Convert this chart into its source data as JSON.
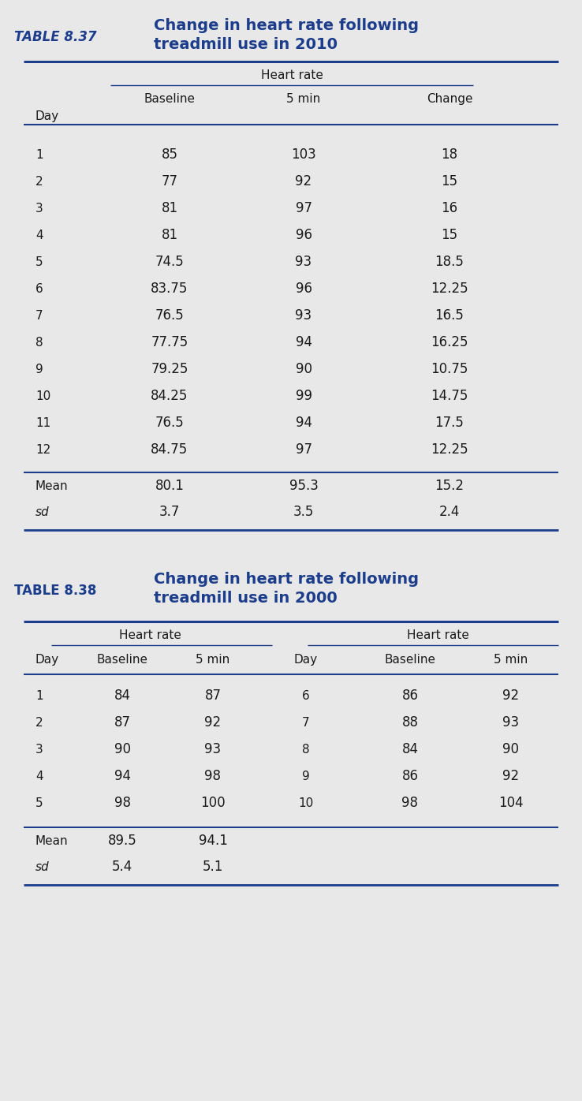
{
  "table1": {
    "title_label": "TABLE 8.37",
    "title_line1": "Change in heart rate following",
    "title_line2": "treadmill use in 2010",
    "group_header": "Heart rate",
    "col_headers": [
      "Baseline",
      "5 min",
      "Change"
    ],
    "row_label": "Day",
    "days": [
      1,
      2,
      3,
      4,
      5,
      6,
      7,
      8,
      9,
      10,
      11,
      12
    ],
    "baseline": [
      85,
      77,
      81,
      81,
      74.5,
      83.75,
      76.5,
      77.75,
      79.25,
      84.25,
      76.5,
      84.75
    ],
    "five_min": [
      103,
      92,
      97,
      96,
      93,
      96,
      93,
      94,
      90,
      99,
      94,
      97
    ],
    "change": [
      18,
      15,
      16,
      15,
      18.5,
      12.25,
      16.5,
      16.25,
      10.75,
      14.75,
      17.5,
      12.25
    ],
    "mean_label": "Mean",
    "sd_label": "sd",
    "mean_baseline": "80.1",
    "mean_5min": "95.3",
    "mean_change": "15.2",
    "sd_baseline": "3.7",
    "sd_5min": "3.5",
    "sd_change": "2.4"
  },
  "table2": {
    "title_label": "TABLE 8.38",
    "title_line1": "Change in heart rate following",
    "title_line2": "treadmill use in 2000",
    "group_header_left": "Heart rate",
    "group_header_right": "Heart rate",
    "left_days": [
      1,
      2,
      3,
      4,
      5
    ],
    "left_baseline": [
      84,
      87,
      90,
      94,
      98
    ],
    "left_5min": [
      87,
      92,
      93,
      98,
      100
    ],
    "right_days": [
      6,
      7,
      8,
      9,
      10
    ],
    "right_baseline": [
      86,
      88,
      84,
      86,
      98
    ],
    "right_5min": [
      92,
      93,
      90,
      92,
      104
    ],
    "mean_label": "Mean",
    "sd_label": "sd",
    "mean_baseline": "89.5",
    "mean_5min": "94.1",
    "sd_baseline": "5.4",
    "sd_5min": "5.1"
  },
  "bg_color": "#e8e8e8",
  "title_color": "#1c3d8c",
  "line_color": "#1c3d8c",
  "text_color": "#1a1a1a",
  "fig_width": 7.38,
  "fig_height": 13.96,
  "dpi": 100
}
